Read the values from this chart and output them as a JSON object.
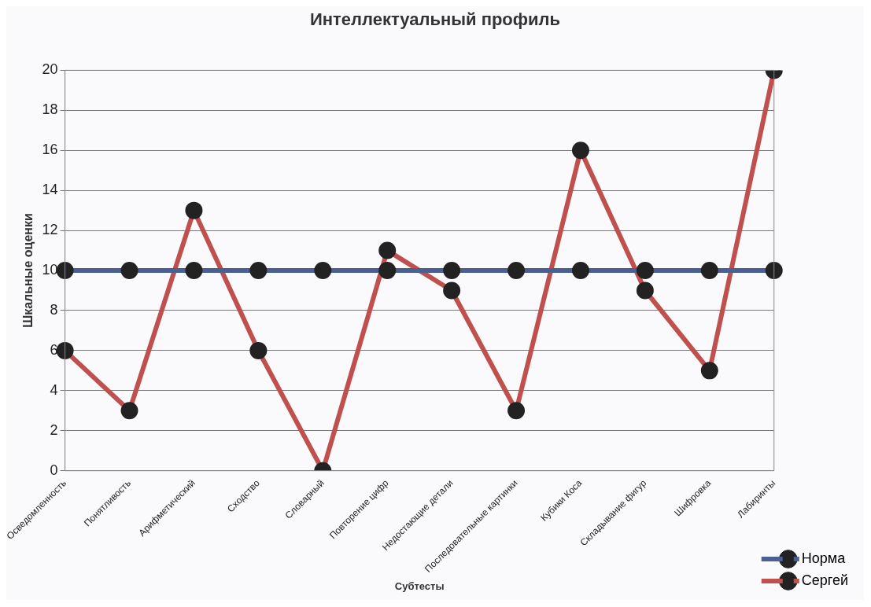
{
  "chart_data": {
    "type": "line",
    "title": "Интеллектуальный профиль",
    "xlabel": "Субтесты",
    "ylabel": "Шкальные оценки",
    "categories": [
      "Осведомленность",
      "Понятливость",
      "Арифметический",
      "Сходство",
      "Словарный",
      "Повторение цифр",
      "Недостающие детали",
      "Последовательные картинки",
      "Кубики Коса",
      "Складывание фигур",
      "Шифровка",
      "Лабиринты"
    ],
    "series": [
      {
        "name": "Норма",
        "color": "#4a6090",
        "values": [
          10,
          10,
          10,
          10,
          10,
          10,
          10,
          10,
          10,
          10,
          10,
          10
        ]
      },
      {
        "name": "Сергей",
        "color": "#c0504d",
        "values": [
          6,
          3,
          13,
          6,
          0,
          11,
          9,
          3,
          16,
          9,
          5,
          20
        ]
      }
    ],
    "ylim": [
      0,
      20
    ],
    "yticks": [
      0,
      2,
      4,
      6,
      8,
      10,
      12,
      14,
      16,
      18,
      20
    ],
    "grid": "y",
    "legend": "bottom right",
    "marker": "circle",
    "line_style": "solid"
  }
}
